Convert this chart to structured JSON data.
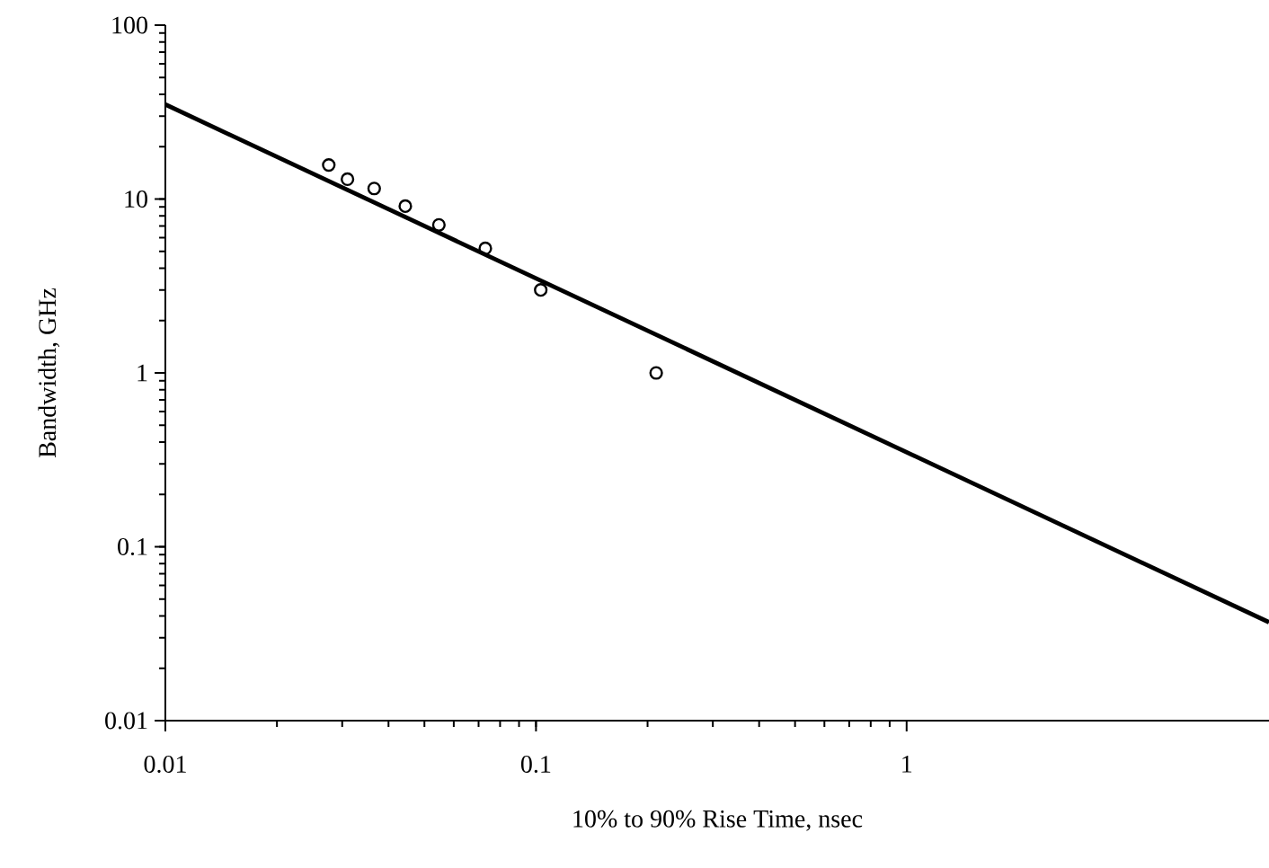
{
  "chart_data": {
    "type": "scatter",
    "xlabel": "10% to 90% Rise Time, nsec",
    "ylabel": "Bandwidth, GHz",
    "log": "xy",
    "xlim": [
      0.01,
      9.5
    ],
    "ylim": [
      0.01,
      100
    ],
    "xticks": [
      0.01,
      0.1,
      1
    ],
    "yticks": [
      0.01,
      0.1,
      1,
      10,
      100
    ],
    "grid": false,
    "series": [
      {
        "marker": "circle",
        "color": "#000000",
        "x": [
          0.0276,
          0.031,
          0.0366,
          0.0444,
          0.0547,
          0.073,
          0.103,
          0.211
        ],
        "values": [
          15.7,
          13.0,
          11.5,
          9.1,
          7.1,
          5.2,
          3.0,
          1.0
        ]
      },
      {
        "type": "line",
        "marker": "none",
        "line_style": "solid",
        "color": "#000000",
        "x": [
          0.01,
          9.5
        ],
        "values": [
          35,
          0.0368
        ]
      }
    ]
  }
}
